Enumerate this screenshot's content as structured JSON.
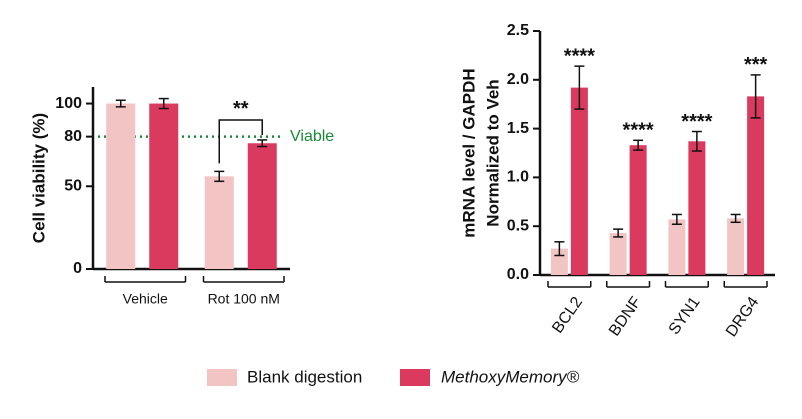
{
  "chart_data": [
    {
      "type": "bar",
      "ylabel": "Cell viability (%)",
      "categories": [
        "Vehicle",
        "Rot 100 nM"
      ],
      "series": [
        {
          "name": "Blank digestion",
          "color": "#f2c4c4",
          "values": [
            100,
            56
          ],
          "errors": [
            2,
            3
          ]
        },
        {
          "name": "MethoxyMemory®",
          "color": "#d93a5e",
          "values": [
            100,
            76
          ],
          "errors": [
            3,
            2
          ]
        }
      ],
      "ylim": [
        0,
        110
      ],
      "yticks": [
        0,
        50,
        80,
        100
      ],
      "reference_line": {
        "value": 80,
        "label": "Viable",
        "color": "#1a8a3a"
      },
      "annotations": [
        {
          "category": 1,
          "text": "**"
        }
      ]
    },
    {
      "type": "bar",
      "ylabel": [
        "mRNA level / GAPDH",
        "Normalized to Veh"
      ],
      "categories": [
        "BCL2",
        "BDNF",
        "SYN1",
        "DRG4"
      ],
      "series": [
        {
          "color": "#f2c4c4",
          "values": [
            0.27,
            0.43,
            0.57,
            0.58
          ],
          "errors": [
            0.07,
            0.04,
            0.05,
            0.04
          ]
        },
        {
          "color": "#d93a5e",
          "values": [
            1.92,
            1.33,
            1.37,
            1.83
          ],
          "errors": [
            0.22,
            0.05,
            0.1,
            0.22
          ]
        }
      ],
      "ylim": [
        0,
        2.5
      ],
      "yticks": [
        {
          "value": 0,
          "label": "0.0"
        },
        0.5,
        {
          "value": 1,
          "label": "1.0"
        },
        1.5,
        {
          "value": 2,
          "label": "2.0"
        },
        2.5
      ],
      "significance": [
        "****",
        "****",
        "****",
        "***"
      ]
    }
  ]
}
